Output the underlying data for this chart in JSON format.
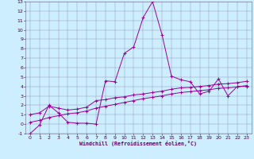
{
  "xlabel": "Windchill (Refroidissement éolien,°C)",
  "xlim": [
    0,
    23
  ],
  "ylim": [
    -1,
    13
  ],
  "yticks": [
    -1,
    0,
    1,
    2,
    3,
    4,
    5,
    6,
    7,
    8,
    9,
    10,
    11,
    12,
    13
  ],
  "xticks": [
    0,
    1,
    2,
    3,
    4,
    5,
    6,
    7,
    8,
    9,
    10,
    11,
    12,
    13,
    14,
    15,
    16,
    17,
    18,
    19,
    20,
    21,
    22,
    23
  ],
  "line_color": "#990099",
  "bg_color": "#cceeff",
  "grid_color": "#9999bb",
  "line1_y": [
    -1.0,
    -0.1,
    2.0,
    1.2,
    0.2,
    0.1,
    0.1,
    0.0,
    4.6,
    4.5,
    7.5,
    8.2,
    11.3,
    13.0,
    9.5,
    5.1,
    4.7,
    4.5,
    3.2,
    3.5,
    4.8,
    3.0,
    4.0,
    4.0
  ],
  "line2_y": [
    1.0,
    1.2,
    1.9,
    1.7,
    1.5,
    1.6,
    1.8,
    2.5,
    2.6,
    2.8,
    2.9,
    3.1,
    3.2,
    3.35,
    3.5,
    3.7,
    3.85,
    3.9,
    4.0,
    4.1,
    4.25,
    4.3,
    4.4,
    4.55
  ],
  "line3_y": [
    0.2,
    0.4,
    0.7,
    0.9,
    1.1,
    1.2,
    1.4,
    1.7,
    1.9,
    2.1,
    2.3,
    2.5,
    2.7,
    2.85,
    3.0,
    3.2,
    3.35,
    3.45,
    3.55,
    3.65,
    3.8,
    3.85,
    3.95,
    4.1
  ]
}
